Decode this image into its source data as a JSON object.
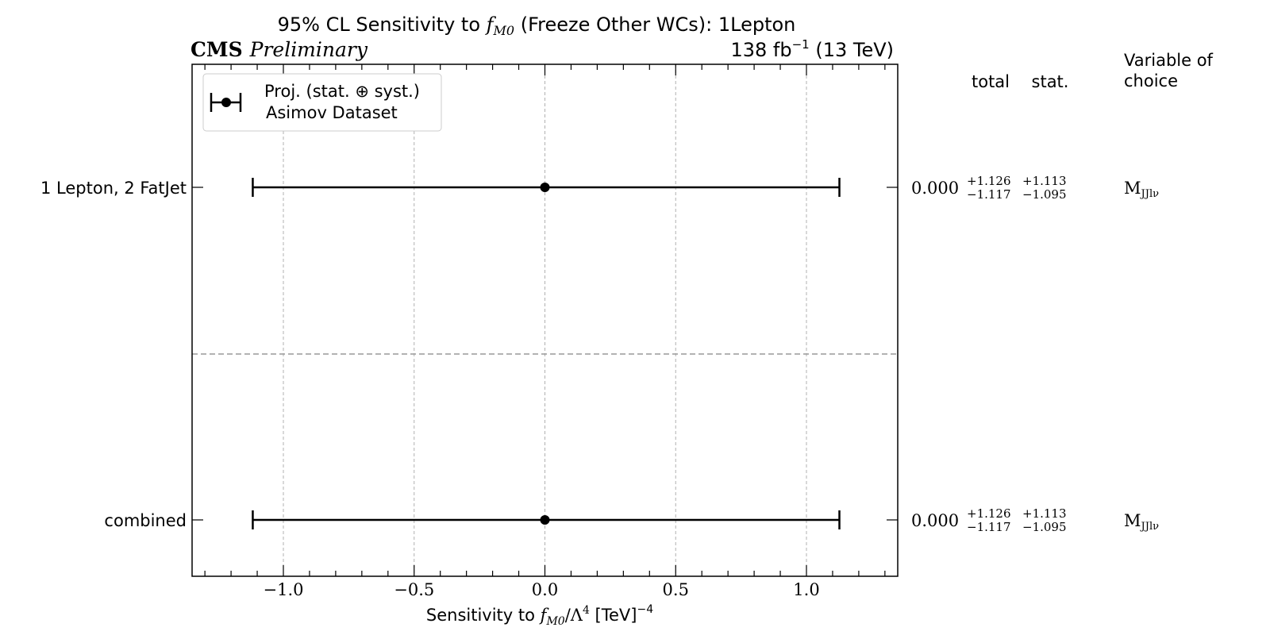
{
  "header": {
    "title_prefix": "95% CL Sensitivity to ",
    "title_param": "f",
    "title_param_sub": "M0",
    "title_suffix": " (Freeze Other WCs): 1Lepton",
    "experiment": "CMS",
    "status": "Preliminary",
    "lumi_prefix": "138 fb",
    "lumi_exp": "−1",
    "lumi_suffix": " (13 TeV)"
  },
  "legend": {
    "line1": "Proj. (stat. ⊕ syst.)",
    "line2": "Asimov Dataset"
  },
  "columns": {
    "total": "total",
    "stat": "stat.",
    "variable_line1": "Variable of",
    "variable_line2": "choice"
  },
  "chart_data": {
    "type": "errorbar",
    "xlabel_prefix": "Sensitivity to ",
    "xlabel_param": "f",
    "xlabel_param_sub": "M0",
    "xlabel_mid": "/Λ",
    "xlabel_mid_sup": "4",
    "xlabel_unit": " [TeV]",
    "xlabel_unit_sup": "−4",
    "xlim": [
      -1.35,
      1.35
    ],
    "xticks": [
      -1.0,
      -0.5,
      0.0,
      0.5,
      1.0
    ],
    "xtick_labels": [
      "−1.0",
      "−0.5",
      "0.0",
      "0.5",
      "1.0"
    ],
    "grid_x": true,
    "legend_position": "top-left",
    "rows": [
      {
        "label": "1 Lepton, 2 FatJet",
        "value": 0.0,
        "err_up": 1.126,
        "err_down": 1.117,
        "value_text": "0.000",
        "total_up": "+1.126",
        "total_down": "−1.117",
        "stat_up": "+1.113",
        "stat_down": "−1.095",
        "variable": "M",
        "variable_sub": "JJlν"
      },
      {
        "label": "combined",
        "value": 0.0,
        "err_up": 1.126,
        "err_down": 1.117,
        "value_text": "0.000",
        "total_up": "+1.126",
        "total_down": "−1.117",
        "stat_up": "+1.113",
        "stat_down": "−1.095",
        "variable": "M",
        "variable_sub": "JJlν"
      }
    ]
  },
  "colors": {
    "ink": "#000000",
    "grid": "#b0b0b0",
    "separator": "#999999"
  }
}
